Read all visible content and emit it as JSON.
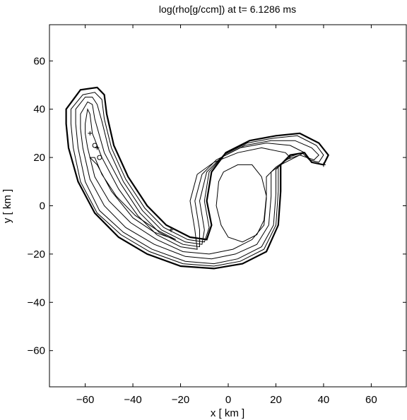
{
  "chart_data": {
    "type": "contour",
    "title": "log(rho[g/ccm]) at t= 6.1286 ms",
    "xlabel": "x [ km ]",
    "ylabel": "y [ km ]",
    "xlim": [
      -75,
      75
    ],
    "ylim": [
      -75,
      75
    ],
    "xticks": [
      -60,
      -40,
      -20,
      0,
      20,
      40,
      60
    ],
    "yticks": [
      60,
      40,
      20,
      0,
      -20,
      -40,
      -60
    ],
    "grid": false,
    "contours": [
      {
        "level_index": 1,
        "points": [
          [
            -68,
            40
          ],
          [
            -62,
            48
          ],
          [
            -55,
            49
          ],
          [
            -52,
            46
          ],
          [
            -51,
            38
          ],
          [
            -48,
            25
          ],
          [
            -42,
            12
          ],
          [
            -34,
            0
          ],
          [
            -26,
            -8
          ],
          [
            -16,
            -13
          ],
          [
            -9,
            -14
          ],
          [
            -7,
            -8
          ],
          [
            -9,
            2
          ],
          [
            -7,
            14
          ],
          [
            -1,
            22
          ],
          [
            9,
            27
          ],
          [
            20,
            29
          ],
          [
            30,
            30
          ],
          [
            38,
            26
          ],
          [
            42,
            21
          ],
          [
            40,
            17
          ],
          [
            35,
            18
          ],
          [
            32,
            22
          ],
          [
            26,
            21
          ],
          [
            22,
            17
          ],
          [
            22,
            6
          ],
          [
            21,
            -8
          ],
          [
            16,
            -19
          ],
          [
            6,
            -24
          ],
          [
            -6,
            -26
          ],
          [
            -20,
            -25
          ],
          [
            -34,
            -20
          ],
          [
            -46,
            -13
          ],
          [
            -56,
            -3
          ],
          [
            -63,
            10
          ],
          [
            -67,
            24
          ],
          [
            -68,
            34
          ],
          [
            -68,
            40
          ]
        ]
      },
      {
        "level_index": 2,
        "points": [
          [
            -66,
            40
          ],
          [
            -61,
            46
          ],
          [
            -56,
            47
          ],
          [
            -53,
            44
          ],
          [
            -52,
            36
          ],
          [
            -49,
            24
          ],
          [
            -43,
            11
          ],
          [
            -35,
            -1
          ],
          [
            -27,
            -9
          ],
          [
            -17,
            -14
          ],
          [
            -10,
            -15
          ],
          [
            -8,
            -9
          ],
          [
            -10,
            2
          ],
          [
            -8,
            14
          ],
          [
            -2,
            21
          ],
          [
            8,
            26
          ],
          [
            19,
            28
          ],
          [
            29,
            29
          ],
          [
            37,
            25
          ],
          [
            40,
            21
          ],
          [
            38,
            18
          ],
          [
            34,
            19
          ],
          [
            31,
            22
          ],
          [
            25,
            20
          ],
          [
            21,
            16
          ],
          [
            21,
            6
          ],
          [
            20,
            -8
          ],
          [
            15,
            -18
          ],
          [
            5,
            -23
          ],
          [
            -6,
            -25
          ],
          [
            -19,
            -24
          ],
          [
            -33,
            -19
          ],
          [
            -45,
            -12
          ],
          [
            -55,
            -3
          ],
          [
            -62,
            10
          ],
          [
            -65,
            24
          ],
          [
            -66,
            34
          ],
          [
            -66,
            40
          ]
        ]
      },
      {
        "level_index": 3,
        "points": [
          [
            -64,
            40
          ],
          [
            -60,
            45
          ],
          [
            -57,
            45
          ],
          [
            -55,
            42
          ],
          [
            -53,
            35
          ],
          [
            -50,
            23
          ],
          [
            -44,
            10
          ],
          [
            -36,
            -2
          ],
          [
            -28,
            -10
          ],
          [
            -18,
            -15
          ],
          [
            -11,
            -16
          ],
          [
            -10,
            -10
          ],
          [
            -12,
            2
          ],
          [
            -9,
            14
          ],
          [
            -3,
            20
          ],
          [
            7,
            25
          ],
          [
            18,
            27
          ],
          [
            28,
            27
          ],
          [
            35,
            24
          ],
          [
            38,
            21
          ],
          [
            36,
            19
          ],
          [
            33,
            20
          ],
          [
            30,
            21
          ],
          [
            24,
            19
          ],
          [
            20,
            15
          ],
          [
            20,
            5
          ],
          [
            19,
            -8
          ],
          [
            14,
            -17
          ],
          [
            4,
            -22
          ],
          [
            -6,
            -24
          ],
          [
            -18,
            -23
          ],
          [
            -32,
            -18
          ],
          [
            -44,
            -11
          ],
          [
            -54,
            -2
          ],
          [
            -60,
            10
          ],
          [
            -63,
            24
          ],
          [
            -64,
            34
          ],
          [
            -64,
            40
          ]
        ]
      },
      {
        "level_index": 4,
        "points": [
          [
            -62,
            38
          ],
          [
            -59,
            43
          ],
          [
            -57,
            42
          ],
          [
            -56,
            36
          ],
          [
            -52,
            22
          ],
          [
            -45,
            9
          ],
          [
            -37,
            -3
          ],
          [
            -29,
            -11
          ],
          [
            -19,
            -16
          ],
          [
            -12,
            -17
          ],
          [
            -12,
            -10
          ],
          [
            -14,
            2
          ],
          [
            -11,
            13
          ],
          [
            -5,
            19
          ],
          [
            5,
            24
          ],
          [
            16,
            26
          ],
          [
            26,
            25
          ],
          [
            32,
            22
          ],
          [
            28,
            20
          ],
          [
            22,
            17
          ],
          [
            18,
            14
          ],
          [
            18,
            4
          ],
          [
            17,
            -8
          ],
          [
            12,
            -16
          ],
          [
            3,
            -20
          ],
          [
            -7,
            -22
          ],
          [
            -18,
            -21
          ],
          [
            -31,
            -16
          ],
          [
            -43,
            -9
          ],
          [
            -52,
            0
          ],
          [
            -58,
            11
          ],
          [
            -61,
            24
          ],
          [
            -62,
            32
          ],
          [
            -62,
            38
          ]
        ]
      },
      {
        "level_index": 5,
        "points": [
          [
            -60,
            34
          ],
          [
            -59,
            40
          ],
          [
            -58,
            38
          ],
          [
            -57,
            30
          ],
          [
            -53,
            20
          ],
          [
            -46,
            7
          ],
          [
            -38,
            -4
          ],
          [
            -30,
            -12
          ],
          [
            -20,
            -17
          ],
          [
            -13,
            -18
          ],
          [
            -14,
            -10
          ],
          [
            -16,
            2
          ],
          [
            -13,
            13
          ],
          [
            -6,
            18
          ],
          [
            4,
            22
          ],
          [
            14,
            24
          ],
          [
            24,
            22
          ],
          [
            26,
            20
          ],
          [
            20,
            16
          ],
          [
            16,
            12
          ],
          [
            16,
            3
          ],
          [
            15,
            -8
          ],
          [
            10,
            -14
          ],
          [
            2,
            -18
          ],
          [
            -8,
            -20
          ],
          [
            -19,
            -19
          ],
          [
            -30,
            -14
          ],
          [
            -41,
            -7
          ],
          [
            -50,
            2
          ],
          [
            -56,
            12
          ],
          [
            -59,
            24
          ],
          [
            -60,
            30
          ],
          [
            -60,
            34
          ]
        ]
      },
      {
        "level_index": 6,
        "points": [
          [
            -58,
            20
          ],
          [
            -55,
            17
          ],
          [
            -49,
            6
          ],
          [
            -40,
            -5
          ],
          [
            -31,
            -11
          ],
          [
            -22,
            -14
          ],
          [
            -30,
            -10
          ],
          [
            -39,
            -4
          ],
          [
            -47,
            4
          ],
          [
            -53,
            13
          ],
          [
            -56,
            20
          ],
          [
            -58,
            20
          ]
        ]
      },
      {
        "level_index": 7,
        "points": [
          [
            -4,
            10
          ],
          [
            -2,
            14
          ],
          [
            4,
            17
          ],
          [
            10,
            17
          ],
          [
            14,
            12
          ],
          [
            16,
            4
          ],
          [
            15,
            -6
          ],
          [
            12,
            -12
          ],
          [
            6,
            -15
          ],
          [
            0,
            -13
          ],
          [
            -3,
            -8
          ],
          [
            -5,
            0
          ],
          [
            -4,
            10
          ]
        ]
      }
    ],
    "markers": [
      {
        "symbol": "+",
        "x": -58,
        "y": 30
      },
      {
        "symbol": "o",
        "x": -56,
        "y": 25
      },
      {
        "symbol": "+",
        "x": -55,
        "y": 24
      },
      {
        "symbol": "o",
        "x": -54,
        "y": 20
      },
      {
        "symbol": "+",
        "x": -24,
        "y": -10
      },
      {
        "symbol": "+",
        "x": 40,
        "y": 17
      }
    ]
  }
}
